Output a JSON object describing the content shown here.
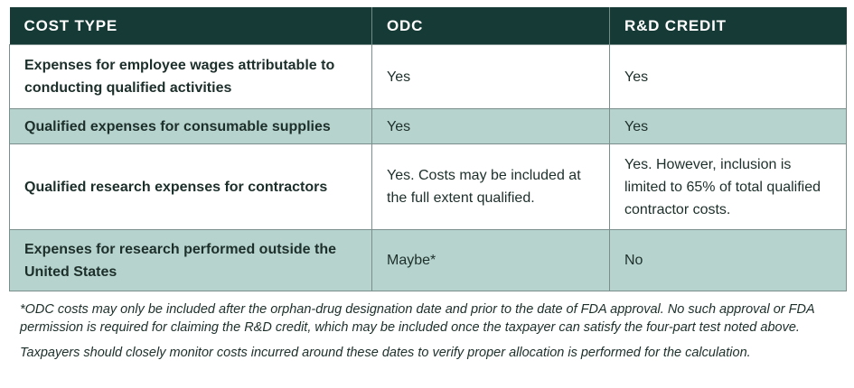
{
  "table": {
    "headers": [
      "COST TYPE",
      "ODC",
      "R&D CREDIT"
    ],
    "rows": [
      {
        "cost_type": "Expenses for employee wages attributable to conducting qualified activities",
        "odc": "Yes",
        "rd_credit": "Yes"
      },
      {
        "cost_type": "Qualified expenses for consumable supplies",
        "odc": "Yes",
        "rd_credit": "Yes"
      },
      {
        "cost_type": "Qualified research expenses for contractors",
        "odc": "Yes. Costs may be included at the full extent qualified.",
        "rd_credit": "Yes. However, inclusion is limited to 65% of total qualified contractor costs."
      },
      {
        "cost_type": "Expenses for research performed outside the United States",
        "odc": "Maybe*",
        "rd_credit": "No"
      }
    ]
  },
  "notes": {
    "footnote": "*ODC costs may only be included after the orphan-drug designation date and prior to the date of FDA approval. No such approval or FDA permission is required for claiming the R&D credit, which may be included once the taxpayer can satisfy the four-part test noted above.",
    "advice": "Taxpayers should closely monitor costs incurred around these dates to verify proper allocation is performed for the calculation."
  },
  "colors": {
    "header_bg": "#163b36",
    "shaded_row_bg": "#b7d3cd",
    "text": "#1d2f2b"
  }
}
